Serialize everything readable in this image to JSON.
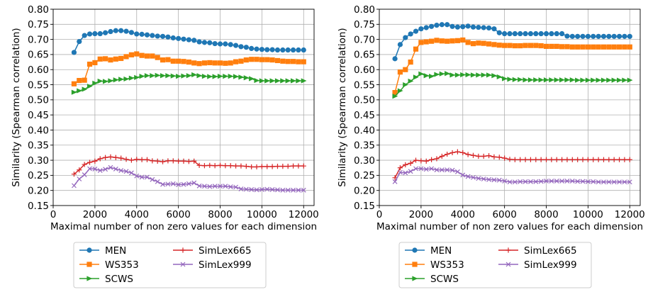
{
  "chart_data": [
    {
      "type": "line",
      "xlabel": "Maximal number of non zero values for each dimension",
      "ylabel": "Similarity (Spearman correlation)",
      "xlim": [
        0,
        12500
      ],
      "ylim": [
        0.15,
        0.8
      ],
      "xticks": [
        "0",
        "2000",
        "4000",
        "6000",
        "8000",
        "10000",
        "12000"
      ],
      "yticks": [
        "0.15",
        "0.20",
        "0.25",
        "0.30",
        "0.35",
        "0.40",
        "0.45",
        "0.50",
        "0.55",
        "0.60",
        "0.65",
        "0.70",
        "0.75",
        "0.80"
      ],
      "grid": true,
      "legend_position": "below",
      "series": [
        {
          "name": "MEN",
          "color": "#1f77b4",
          "marker": "circle",
          "x": [
            1000,
            1250,
            1500,
            1750,
            2000,
            2250,
            2500,
            2750,
            3000,
            3250,
            3500,
            3750,
            4000,
            4250,
            4500,
            4750,
            5000,
            5250,
            5500,
            5750,
            6000,
            6250,
            6500,
            6750,
            7000,
            7250,
            7500,
            7750,
            8000,
            8250,
            8500,
            8750,
            9000,
            9250,
            9500,
            9750,
            10000,
            10250,
            10500,
            10750,
            11000,
            11250,
            11500,
            11750,
            12000
          ],
          "y": [
            0.657,
            0.693,
            0.713,
            0.718,
            0.719,
            0.719,
            0.722,
            0.726,
            0.729,
            0.729,
            0.727,
            0.723,
            0.718,
            0.717,
            0.715,
            0.713,
            0.711,
            0.71,
            0.708,
            0.705,
            0.703,
            0.701,
            0.699,
            0.697,
            0.692,
            0.69,
            0.689,
            0.686,
            0.685,
            0.685,
            0.683,
            0.68,
            0.676,
            0.674,
            0.67,
            0.668,
            0.667,
            0.666,
            0.666,
            0.665,
            0.665,
            0.665,
            0.665,
            0.665,
            0.665
          ]
        },
        {
          "name": "WS353",
          "color": "#ff7f0e",
          "marker": "square",
          "x": [
            1000,
            1250,
            1500,
            1750,
            2000,
            2250,
            2500,
            2750,
            3000,
            3250,
            3500,
            3750,
            4000,
            4250,
            4500,
            4750,
            5000,
            5250,
            5500,
            5750,
            6000,
            6250,
            6500,
            6750,
            7000,
            7250,
            7500,
            7750,
            8000,
            8250,
            8500,
            8750,
            9000,
            9250,
            9500,
            9750,
            10000,
            10250,
            10500,
            10750,
            11000,
            11250,
            11500,
            11750,
            12000
          ],
          "y": [
            0.553,
            0.564,
            0.565,
            0.618,
            0.623,
            0.635,
            0.636,
            0.632,
            0.635,
            0.637,
            0.643,
            0.649,
            0.652,
            0.647,
            0.645,
            0.645,
            0.64,
            0.632,
            0.633,
            0.628,
            0.628,
            0.627,
            0.625,
            0.622,
            0.62,
            0.622,
            0.623,
            0.622,
            0.622,
            0.621,
            0.622,
            0.626,
            0.628,
            0.632,
            0.634,
            0.634,
            0.633,
            0.633,
            0.632,
            0.63,
            0.628,
            0.627,
            0.627,
            0.626,
            0.626
          ]
        },
        {
          "name": "SCWS",
          "color": "#2ca02c",
          "marker": "triangle-right",
          "x": [
            1000,
            1250,
            1500,
            1750,
            2000,
            2250,
            2500,
            2750,
            3000,
            3250,
            3500,
            3750,
            4000,
            4250,
            4500,
            4750,
            5000,
            5250,
            5500,
            5750,
            6000,
            6250,
            6500,
            6750,
            7000,
            7250,
            7500,
            7750,
            8000,
            8250,
            8500,
            8750,
            9000,
            9250,
            9500,
            9750,
            10000,
            10250,
            10500,
            10750,
            11000,
            11250,
            11500,
            11750,
            12000
          ],
          "y": [
            0.525,
            0.53,
            0.535,
            0.545,
            0.555,
            0.562,
            0.561,
            0.563,
            0.566,
            0.568,
            0.569,
            0.572,
            0.574,
            0.578,
            0.58,
            0.58,
            0.581,
            0.58,
            0.58,
            0.579,
            0.578,
            0.579,
            0.58,
            0.583,
            0.58,
            0.578,
            0.577,
            0.577,
            0.578,
            0.578,
            0.578,
            0.577,
            0.575,
            0.573,
            0.57,
            0.564,
            0.563,
            0.563,
            0.563,
            0.563,
            0.563,
            0.563,
            0.563,
            0.563,
            0.563
          ]
        },
        {
          "name": "SimLex665",
          "color": "#d62728",
          "marker": "plus",
          "x": [
            1000,
            1250,
            1500,
            1750,
            2000,
            2250,
            2500,
            2750,
            3000,
            3250,
            3500,
            3750,
            4000,
            4250,
            4500,
            4750,
            5000,
            5250,
            5500,
            5750,
            6000,
            6250,
            6500,
            6750,
            7000,
            7250,
            7500,
            7750,
            8000,
            8250,
            8500,
            8750,
            9000,
            9250,
            9500,
            9750,
            10000,
            10250,
            10500,
            10750,
            11000,
            11250,
            11500,
            11750,
            12000
          ],
          "y": [
            0.254,
            0.268,
            0.286,
            0.293,
            0.297,
            0.305,
            0.309,
            0.311,
            0.309,
            0.307,
            0.303,
            0.3,
            0.303,
            0.302,
            0.302,
            0.298,
            0.297,
            0.295,
            0.298,
            0.298,
            0.297,
            0.297,
            0.296,
            0.297,
            0.283,
            0.282,
            0.283,
            0.282,
            0.283,
            0.282,
            0.282,
            0.281,
            0.281,
            0.28,
            0.278,
            0.278,
            0.279,
            0.279,
            0.279,
            0.28,
            0.28,
            0.28,
            0.281,
            0.281,
            0.281
          ]
        },
        {
          "name": "SimLex999",
          "color": "#9467bd",
          "marker": "x",
          "x": [
            1000,
            1250,
            1500,
            1750,
            2000,
            2250,
            2500,
            2750,
            3000,
            3250,
            3500,
            3750,
            4000,
            4250,
            4500,
            4750,
            5000,
            5250,
            5500,
            5750,
            6000,
            6250,
            6500,
            6750,
            7000,
            7250,
            7500,
            7750,
            8000,
            8250,
            8500,
            8750,
            9000,
            9250,
            9500,
            9750,
            10000,
            10250,
            10500,
            10750,
            11000,
            11250,
            11500,
            11750,
            12000
          ],
          "y": [
            0.216,
            0.238,
            0.252,
            0.272,
            0.271,
            0.266,
            0.27,
            0.276,
            0.271,
            0.266,
            0.263,
            0.258,
            0.248,
            0.244,
            0.244,
            0.236,
            0.229,
            0.22,
            0.221,
            0.222,
            0.219,
            0.22,
            0.222,
            0.225,
            0.215,
            0.214,
            0.213,
            0.214,
            0.214,
            0.214,
            0.212,
            0.211,
            0.205,
            0.204,
            0.203,
            0.202,
            0.203,
            0.204,
            0.203,
            0.202,
            0.201,
            0.201,
            0.201,
            0.201,
            0.201
          ]
        }
      ]
    },
    {
      "type": "line",
      "xlabel": "Maximal number of non zero values for each dimension",
      "ylabel": "Similarity (Spearman correlation)",
      "xlim": [
        0,
        12500
      ],
      "ylim": [
        0.15,
        0.8
      ],
      "xticks": [
        "0",
        "2000",
        "4000",
        "6000",
        "8000",
        "10000",
        "12000"
      ],
      "yticks": [
        "0.15",
        "0.20",
        "0.25",
        "0.30",
        "0.35",
        "0.40",
        "0.45",
        "0.50",
        "0.55",
        "0.60",
        "0.65",
        "0.70",
        "0.75",
        "0.80"
      ],
      "grid": true,
      "legend_position": "below",
      "series": [
        {
          "name": "MEN",
          "color": "#1f77b4",
          "marker": "circle",
          "x": [
            750,
            1000,
            1250,
            1500,
            1750,
            2000,
            2250,
            2500,
            2750,
            3000,
            3250,
            3500,
            3750,
            4000,
            4250,
            4500,
            4750,
            5000,
            5250,
            5500,
            5750,
            6000,
            6250,
            6500,
            6750,
            7000,
            7250,
            7500,
            7750,
            8000,
            8250,
            8500,
            8750,
            9000,
            9250,
            9500,
            9750,
            10000,
            10250,
            10500,
            10750,
            11000,
            11250,
            11500,
            11750,
            12000
          ],
          "y": [
            0.636,
            0.683,
            0.706,
            0.718,
            0.727,
            0.735,
            0.739,
            0.743,
            0.747,
            0.749,
            0.749,
            0.743,
            0.741,
            0.742,
            0.744,
            0.741,
            0.74,
            0.739,
            0.738,
            0.735,
            0.722,
            0.719,
            0.719,
            0.719,
            0.719,
            0.719,
            0.719,
            0.719,
            0.719,
            0.719,
            0.719,
            0.719,
            0.719,
            0.711,
            0.71,
            0.71,
            0.71,
            0.71,
            0.71,
            0.71,
            0.71,
            0.71,
            0.71,
            0.71,
            0.71,
            0.71
          ]
        },
        {
          "name": "WS353",
          "color": "#ff7f0e",
          "marker": "square",
          "x": [
            750,
            1000,
            1250,
            1500,
            1750,
            2000,
            2250,
            2500,
            2750,
            3000,
            3250,
            3500,
            3750,
            4000,
            4250,
            4500,
            4750,
            5000,
            5250,
            5500,
            5750,
            6000,
            6250,
            6500,
            6750,
            7000,
            7250,
            7500,
            7750,
            8000,
            8250,
            8500,
            8750,
            9000,
            9250,
            9500,
            9750,
            10000,
            10250,
            10500,
            10750,
            11000,
            11250,
            11500,
            11750,
            12000
          ],
          "y": [
            0.524,
            0.592,
            0.6,
            0.625,
            0.668,
            0.69,
            0.692,
            0.694,
            0.697,
            0.695,
            0.694,
            0.695,
            0.696,
            0.698,
            0.69,
            0.686,
            0.688,
            0.687,
            0.685,
            0.683,
            0.681,
            0.68,
            0.68,
            0.679,
            0.679,
            0.68,
            0.68,
            0.68,
            0.679,
            0.677,
            0.677,
            0.677,
            0.676,
            0.676,
            0.675,
            0.675,
            0.675,
            0.675,
            0.675,
            0.675,
            0.675,
            0.675,
            0.675,
            0.675,
            0.675,
            0.675
          ]
        },
        {
          "name": "SCWS",
          "color": "#2ca02c",
          "marker": "triangle-right",
          "x": [
            750,
            1000,
            1250,
            1500,
            1750,
            2000,
            2250,
            2500,
            2750,
            3000,
            3250,
            3500,
            3750,
            4000,
            4250,
            4500,
            4750,
            5000,
            5250,
            5500,
            5750,
            6000,
            6250,
            6500,
            6750,
            7000,
            7250,
            7500,
            7750,
            8000,
            8250,
            8500,
            8750,
            9000,
            9250,
            9500,
            9750,
            10000,
            10250,
            10500,
            10750,
            11000,
            11250,
            11500,
            11750,
            12000
          ],
          "y": [
            0.512,
            0.53,
            0.55,
            0.562,
            0.575,
            0.586,
            0.58,
            0.578,
            0.584,
            0.586,
            0.587,
            0.582,
            0.582,
            0.583,
            0.583,
            0.582,
            0.582,
            0.582,
            0.582,
            0.58,
            0.576,
            0.57,
            0.568,
            0.567,
            0.567,
            0.566,
            0.566,
            0.566,
            0.566,
            0.566,
            0.566,
            0.566,
            0.566,
            0.566,
            0.566,
            0.565,
            0.565,
            0.565,
            0.565,
            0.565,
            0.565,
            0.565,
            0.565,
            0.565,
            0.565,
            0.565
          ]
        },
        {
          "name": "SimLex665",
          "color": "#d62728",
          "marker": "plus",
          "x": [
            750,
            1000,
            1250,
            1500,
            1750,
            2000,
            2250,
            2500,
            2750,
            3000,
            3250,
            3500,
            3750,
            4000,
            4250,
            4500,
            4750,
            5000,
            5250,
            5500,
            5750,
            6000,
            6250,
            6500,
            6750,
            7000,
            7250,
            7500,
            7750,
            8000,
            8250,
            8500,
            8750,
            9000,
            9250,
            9500,
            9750,
            10000,
            10250,
            10500,
            10750,
            11000,
            11250,
            11500,
            11750,
            12000
          ],
          "y": [
            0.242,
            0.275,
            0.285,
            0.29,
            0.3,
            0.298,
            0.297,
            0.302,
            0.305,
            0.313,
            0.32,
            0.325,
            0.328,
            0.325,
            0.319,
            0.316,
            0.313,
            0.313,
            0.315,
            0.311,
            0.31,
            0.307,
            0.303,
            0.302,
            0.302,
            0.302,
            0.302,
            0.302,
            0.302,
            0.302,
            0.302,
            0.302,
            0.302,
            0.302,
            0.302,
            0.302,
            0.302,
            0.302,
            0.302,
            0.302,
            0.302,
            0.302,
            0.302,
            0.302,
            0.302,
            0.302
          ]
        },
        {
          "name": "SimLex999",
          "color": "#9467bd",
          "marker": "x",
          "x": [
            750,
            1000,
            1250,
            1500,
            1750,
            2000,
            2250,
            2500,
            2750,
            3000,
            3250,
            3500,
            3750,
            4000,
            4250,
            4500,
            4750,
            5000,
            5250,
            5500,
            5750,
            6000,
            6250,
            6500,
            6750,
            7000,
            7250,
            7500,
            7750,
            8000,
            8250,
            8500,
            8750,
            9000,
            9250,
            9500,
            9750,
            10000,
            10250,
            10500,
            10750,
            11000,
            11250,
            11500,
            11750,
            12000
          ],
          "y": [
            0.229,
            0.26,
            0.258,
            0.263,
            0.272,
            0.272,
            0.27,
            0.272,
            0.268,
            0.268,
            0.268,
            0.267,
            0.262,
            0.251,
            0.246,
            0.243,
            0.24,
            0.238,
            0.236,
            0.235,
            0.234,
            0.231,
            0.228,
            0.228,
            0.229,
            0.229,
            0.229,
            0.229,
            0.23,
            0.231,
            0.231,
            0.231,
            0.231,
            0.231,
            0.231,
            0.23,
            0.23,
            0.229,
            0.229,
            0.228,
            0.228,
            0.228,
            0.228,
            0.228,
            0.228,
            0.228
          ]
        }
      ]
    }
  ]
}
